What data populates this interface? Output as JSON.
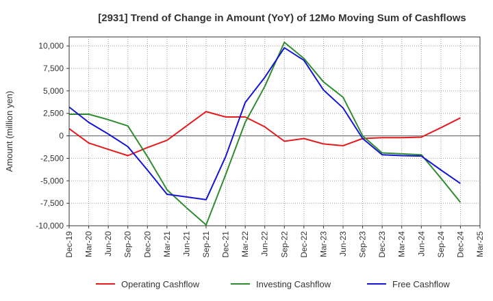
{
  "chart_data": {
    "type": "line",
    "title": "[2931]  Trend of Change in Amount (YoY) of 12Mo Moving Sum of Cashflows",
    "xlabel": "",
    "ylabel": "Amount (million yen)",
    "ylim": [
      -10000,
      11000
    ],
    "yticks": [
      10000,
      7500,
      5000,
      2500,
      0,
      -2500,
      -5000,
      -7500,
      -10000
    ],
    "ytick_labels": [
      "10,000",
      "7,500",
      "5,000",
      "2,500",
      "0",
      "-2,500",
      "-5,000",
      "-7,500",
      "-10,000"
    ],
    "categories": [
      "Dec-19",
      "Mar-20",
      "Jun-20",
      "Sep-20",
      "Dec-20",
      "Mar-21",
      "Jun-21",
      "Sep-21",
      "Dec-21",
      "Mar-22",
      "Jun-22",
      "Sep-22",
      "Dec-22",
      "Mar-23",
      "Jun-23",
      "Sep-23",
      "Dec-23",
      "Mar-24",
      "Jun-24",
      "Sep-24",
      "Dec-24",
      "Mar-25"
    ],
    "grid": true,
    "legend_position": "bottom",
    "series": [
      {
        "name": "Operating Cashflow",
        "color": "#e41a1c",
        "values": [
          800,
          -800,
          -1500,
          -2200,
          -1300,
          -500,
          1100,
          2700,
          2100,
          2100,
          1000,
          -600,
          -300,
          -900,
          -1100,
          -300,
          -200,
          -200,
          -150,
          900,
          2000,
          null
        ]
      },
      {
        "name": "Investing Cashflow",
        "color": "#2e8b2e",
        "values": [
          2400,
          2400,
          1800,
          1100,
          -2300,
          -6000,
          -8000,
          -9900,
          -4300,
          1500,
          5500,
          10400,
          8600,
          6000,
          4300,
          0,
          -1900,
          -2000,
          -2100,
          -4700,
          -7400,
          null
        ]
      },
      {
        "name": "Free Cashflow",
        "color": "#1414d4",
        "values": [
          3200,
          1500,
          200,
          -1200,
          -3800,
          -6500,
          -6800,
          -7100,
          -2300,
          3700,
          6500,
          9800,
          8400,
          5100,
          3100,
          -300,
          -2100,
          -2200,
          -2250,
          -3800,
          -5300,
          null
        ]
      }
    ]
  }
}
